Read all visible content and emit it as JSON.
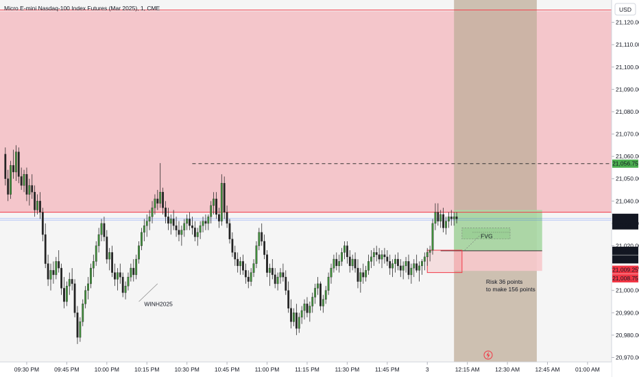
{
  "header": {
    "title": "Micro E-mini Nasdaq-100 Index Futures (Mar 2025), 1, CME",
    "currency_button": "USD"
  },
  "colors": {
    "up": "#26a69a",
    "up_body": "#3f8f3a",
    "down": "#222222",
    "supply_zone": "#f4c6cb",
    "loss_zone": "#f7c9cc",
    "target_zone": "#a9d8a5",
    "shade_column": "#bfae9a",
    "red_line": "#f23645",
    "blue_line": "#2962ff",
    "badge_green": "#4caf50",
    "badge_dark": "#131722",
    "badge_red": "#f23645"
  },
  "annotations": {
    "fvg_label": "FVG",
    "small_label": "WINH2025",
    "risk_text_line1": "Risk 36 points",
    "risk_text_line2": "to make 156 points",
    "target_line_label": ""
  },
  "price_badges": [
    {
      "value": "21,056.75",
      "price": 21056.75,
      "style": "green"
    },
    {
      "value": "21,032.50",
      "price": 21032.5,
      "style": "dark",
      "sub": "00:08"
    },
    {
      "value": "21,017.75",
      "price": 21017.75,
      "style": "dark"
    },
    {
      "value": "21,017.00",
      "price": 21017.0,
      "style": "dark"
    },
    {
      "value": "21,009.25",
      "price": 21009.25,
      "style": "red"
    },
    {
      "value": "21,008.75",
      "price": 21008.75,
      "style": "red"
    }
  ],
  "chart_data": {
    "type": "candlestick",
    "title": "Micro E-mini Nasdaq-100 Index Futures (Mar 2025), 1, CME",
    "xlabel": "",
    "ylabel": "",
    "ylim": [
      20968,
      21130
    ],
    "y_ticks": [
      20970,
      20980,
      20990,
      21000,
      21010,
      21020,
      21030,
      21040,
      21050,
      21060,
      21070,
      21080,
      21090,
      21100,
      21110,
      21120
    ],
    "y_tick_labels": [
      "20,970.00",
      "20,980.00",
      "20,990.00",
      "21,000.00",
      "21,010.00",
      "21,020.00",
      "21,030.00",
      "21,040.00",
      "21,050.00",
      "21,060.00",
      "21,070.00",
      "21,080.00",
      "21,090.00",
      "21,100.00",
      "21,110.00",
      "21,120.00"
    ],
    "x_ticks": [
      {
        "label": "09:30 PM",
        "index": 8
      },
      {
        "label": "09:45 PM",
        "index": 23
      },
      {
        "label": "10:00 PM",
        "index": 38
      },
      {
        "label": "10:15 PM",
        "index": 53
      },
      {
        "label": "10:30 PM",
        "index": 68
      },
      {
        "label": "10:45 PM",
        "index": 83
      },
      {
        "label": "11:00 PM",
        "index": 98
      },
      {
        "label": "11:15 PM",
        "index": 113
      },
      {
        "label": "11:30 PM",
        "index": 128
      },
      {
        "label": "11:45 PM",
        "index": 143
      },
      {
        "label": "3",
        "index": 158
      },
      {
        "label": "12:15 AM",
        "index": 173
      },
      {
        "label": "12:30 AM",
        "index": 188
      },
      {
        "label": "12:45 AM",
        "index": 203
      },
      {
        "label": "01:00 AM",
        "index": 218
      }
    ],
    "x_index_range": [
      -2,
      227
    ],
    "supply_zone": {
      "top": 21125,
      "bottom": 21035
    },
    "red_line_upper": 21125.5,
    "red_line_lower": 21035,
    "target_dashed_line": {
      "price": 21056.75,
      "from_index": 70
    },
    "blue_lines": [
      21032.2,
      21031.5
    ],
    "trade": {
      "entry": 21017.75,
      "stop": 21008.75,
      "target": 21036,
      "from_index": 168,
      "to_index": 201
    },
    "shade_column": {
      "from_index": 168,
      "to_index": 199
    },
    "fvg_box": {
      "from_index": 171,
      "to_index": 189,
      "top": 21028,
      "bottom": 21023
    },
    "order_block": {
      "from_index": 158,
      "to_index": 171,
      "top": 21018,
      "bottom": 21008
    },
    "candles": [
      [
        21061,
        21064,
        21047,
        21050
      ],
      [
        21050,
        21054,
        21040,
        21043
      ],
      [
        21043,
        21058,
        21041,
        21056
      ],
      [
        21056,
        21063,
        21050,
        21053
      ],
      [
        21053,
        21065,
        21049,
        21062
      ],
      [
        21062,
        21064,
        21048,
        21051
      ],
      [
        21051,
        21055,
        21045,
        21047
      ],
      [
        21047,
        21054,
        21044,
        21052
      ],
      [
        21052,
        21055,
        21040,
        21043
      ],
      [
        21043,
        21050,
        21038,
        21047
      ],
      [
        21047,
        21052,
        21041,
        21044
      ],
      [
        21044,
        21047,
        21033,
        21036
      ],
      [
        21036,
        21043,
        21034,
        21040
      ],
      [
        21040,
        21044,
        21032,
        21035
      ],
      [
        21035,
        21037,
        21022,
        21025
      ],
      [
        21025,
        21030,
        21010,
        21012
      ],
      [
        21012,
        21016,
        21002,
        21005
      ],
      [
        21005,
        21012,
        21000,
        21009
      ],
      [
        21009,
        21013,
        21003,
        21007
      ],
      [
        21007,
        21015,
        21005,
        21013
      ],
      [
        21013,
        21018,
        21008,
        21010
      ],
      [
        21010,
        21012,
        20998,
        21001
      ],
      [
        21001,
        21006,
        20992,
        20995
      ],
      [
        20995,
        21004,
        20993,
        21002
      ],
      [
        21002,
        21008,
        20998,
        21005
      ],
      [
        21005,
        21010,
        21000,
        21003
      ],
      [
        21003,
        21005,
        20988,
        20990
      ],
      [
        20990,
        20993,
        20976,
        20979
      ],
      [
        20979,
        20988,
        20977,
        20986
      ],
      [
        20986,
        20996,
        20984,
        20994
      ],
      [
        20994,
        21002,
        20992,
        21000
      ],
      [
        21000,
        21006,
        20996,
        21003
      ],
      [
        21003,
        21012,
        21001,
        21010
      ],
      [
        21010,
        21016,
        21006,
        21013
      ],
      [
        21013,
        21022,
        21011,
        21020
      ],
      [
        21020,
        21028,
        21017,
        21025
      ],
      [
        21025,
        21032,
        21022,
        21030
      ],
      [
        21030,
        21033,
        21022,
        21024
      ],
      [
        21024,
        21027,
        21012,
        21014
      ],
      [
        21014,
        21019,
        21009,
        21017
      ],
      [
        21017,
        21020,
        21006,
        21008
      ],
      [
        21008,
        21012,
        21002,
        21005
      ],
      [
        21005,
        21010,
        21000,
        21008
      ],
      [
        21008,
        21012,
        21003,
        21006
      ],
      [
        21006,
        21008,
        20997,
        20999
      ],
      [
        20999,
        21004,
        20996,
        21002
      ],
      [
        21002,
        21008,
        21000,
        21006
      ],
      [
        21006,
        21012,
        21004,
        21010
      ],
      [
        21010,
        21014,
        21004,
        21007
      ],
      [
        21007,
        21016,
        21005,
        21014
      ],
      [
        21014,
        21022,
        21012,
        21020
      ],
      [
        21020,
        21028,
        21018,
        21026
      ],
      [
        21026,
        21032,
        21022,
        21029
      ],
      [
        21029,
        21034,
        21024,
        21031
      ],
      [
        21031,
        21036,
        21027,
        21033
      ],
      [
        21033,
        21040,
        21030,
        21037
      ],
      [
        21037,
        21043,
        21034,
        21041
      ],
      [
        21041,
        21045,
        21036,
        21039
      ],
      [
        21039,
        21057,
        21037,
        21044
      ],
      [
        21044,
        21046,
        21034,
        21037
      ],
      [
        21037,
        21040,
        21030,
        21033
      ],
      [
        21033,
        21037,
        21027,
        21030
      ],
      [
        21030,
        21034,
        21025,
        21032
      ],
      [
        21032,
        21036,
        21027,
        21029
      ],
      [
        21029,
        21033,
        21024,
        21027
      ],
      [
        21027,
        21031,
        21022,
        21025
      ],
      [
        21025,
        21029,
        21020,
        21027
      ],
      [
        21027,
        21032,
        21024,
        21030
      ],
      [
        21030,
        21034,
        21027,
        21032
      ],
      [
        21032,
        21035,
        21027,
        21029
      ],
      [
        21029,
        21033,
        21025,
        21028
      ],
      [
        21028,
        21031,
        21022,
        21024
      ],
      [
        21024,
        21028,
        21020,
        21026
      ],
      [
        21026,
        21031,
        21023,
        21029
      ],
      [
        21029,
        21033,
        21026,
        21031
      ],
      [
        21031,
        21034,
        21027,
        21030
      ],
      [
        21030,
        21034,
        21027,
        21033
      ],
      [
        21033,
        21040,
        21030,
        21038
      ],
      [
        21038,
        21044,
        21034,
        21041
      ],
      [
        21041,
        21044,
        21032,
        21034
      ],
      [
        21034,
        21037,
        21028,
        21031
      ],
      [
        21031,
        21052,
        21029,
        21048
      ],
      [
        21048,
        21051,
        21032,
        21035
      ],
      [
        21035,
        21038,
        21028,
        21030
      ],
      [
        21030,
        21032,
        21021,
        21023
      ],
      [
        21023,
        21026,
        21015,
        21017
      ],
      [
        21017,
        21020,
        21011,
        21014
      ],
      [
        21014,
        21017,
        21008,
        21011
      ],
      [
        21011,
        21015,
        21007,
        21013
      ],
      [
        21013,
        21016,
        21007,
        21009
      ],
      [
        21009,
        21012,
        21003,
        21006
      ],
      [
        21006,
        21009,
        21001,
        21004
      ],
      [
        21004,
        21010,
        21002,
        21008
      ],
      [
        21008,
        21014,
        21006,
        21012
      ],
      [
        21012,
        21022,
        21010,
        21020
      ],
      [
        21020,
        21028,
        21018,
        21026
      ],
      [
        21026,
        21030,
        21020,
        21022
      ],
      [
        21022,
        21025,
        21014,
        21016
      ],
      [
        21016,
        21018,
        21006,
        21008
      ],
      [
        21008,
        21012,
        21002,
        21010
      ],
      [
        21010,
        21014,
        21005,
        21007
      ],
      [
        21007,
        21010,
        21001,
        21003
      ],
      [
        21003,
        21008,
        21000,
        21006
      ],
      [
        21006,
        21010,
        21003,
        21008
      ],
      [
        21008,
        21012,
        21004,
        21006
      ],
      [
        21006,
        21009,
        20998,
        21000
      ],
      [
        21000,
        21004,
        20990,
        20992
      ],
      [
        20992,
        20996,
        20983,
        20986
      ],
      [
        20986,
        20992,
        20984,
        20990
      ],
      [
        20990,
        20994,
        20980,
        20983
      ],
      [
        20983,
        20990,
        20981,
        20988
      ],
      [
        20988,
        20993,
        20985,
        20991
      ],
      [
        20991,
        20996,
        20987,
        20994
      ],
      [
        20994,
        20997,
        20988,
        20990
      ],
      [
        20990,
        20995,
        20986,
        20993
      ],
      [
        20993,
        20999,
        20990,
        20997
      ],
      [
        20997,
        21003,
        20994,
        21001
      ],
      [
        21001,
        21006,
        20998,
        21003
      ],
      [
        21003,
        21004,
        20991,
        20993
      ],
      [
        20993,
        20998,
        20990,
        20996
      ],
      [
        20996,
        21002,
        20994,
        21000
      ],
      [
        21000,
        21008,
        20998,
        21006
      ],
      [
        21006,
        21012,
        21003,
        21010
      ],
      [
        21010,
        21016,
        21008,
        21014
      ],
      [
        21014,
        21017,
        21009,
        21011
      ],
      [
        21011,
        21016,
        21008,
        21013
      ],
      [
        21013,
        21019,
        21011,
        21017
      ],
      [
        21017,
        21022,
        21014,
        21020
      ],
      [
        21020,
        21022,
        21012,
        21015
      ],
      [
        21015,
        21018,
        21008,
        21011
      ],
      [
        21011,
        21016,
        21009,
        21014
      ],
      [
        21014,
        21017,
        21008,
        21010
      ],
      [
        21010,
        21014,
        21001,
        21004
      ],
      [
        21004,
        21010,
        20999,
        21008
      ],
      [
        21008,
        21012,
        21003,
        21006
      ],
      [
        21006,
        21011,
        21004,
        21009
      ],
      [
        21009,
        21016,
        21007,
        21013
      ],
      [
        21013,
        21018,
        21010,
        21015
      ],
      [
        21015,
        21019,
        21011,
        21017
      ],
      [
        21017,
        21020,
        21013,
        21016
      ],
      [
        21016,
        21019,
        21012,
        21014
      ],
      [
        21014,
        21018,
        21010,
        21016
      ],
      [
        21016,
        21019,
        21012,
        21015
      ],
      [
        21015,
        21018,
        21011,
        21013
      ],
      [
        21013,
        21016,
        21007,
        21010
      ],
      [
        21010,
        21014,
        21006,
        21012
      ],
      [
        21012,
        21016,
        21008,
        21014
      ],
      [
        21014,
        21017,
        21009,
        21011
      ],
      [
        21011,
        21014,
        21006,
        21009
      ],
      [
        21009,
        21013,
        21005,
        21011
      ],
      [
        21011,
        21015,
        21008,
        21013
      ],
      [
        21013,
        21016,
        21005,
        21007
      ],
      [
        21007,
        21012,
        21003,
        21010
      ],
      [
        21010,
        21014,
        21006,
        21012
      ],
      [
        21012,
        21016,
        21008,
        21009
      ],
      [
        21009,
        21013,
        21004,
        21011
      ],
      [
        21011,
        21014,
        21007,
        21013
      ],
      [
        21013,
        21017,
        21009,
        21015
      ],
      [
        21015,
        21019,
        21011,
        21017
      ],
      [
        21017,
        21020,
        21013,
        21018
      ],
      [
        21018,
        21032,
        21016,
        21030
      ],
      [
        21030,
        21039,
        21027,
        21035
      ],
      [
        21035,
        21039,
        21029,
        21031
      ],
      [
        21031,
        21036,
        21028,
        21034
      ],
      [
        21034,
        21037,
        21026,
        21028
      ],
      [
        21028,
        21033,
        21025,
        21031
      ],
      [
        21031,
        21035,
        21028,
        21033
      ],
      [
        21033,
        21036,
        21029,
        21032
      ],
      [
        21032,
        21035,
        21029,
        21033
      ],
      [
        21033,
        21035,
        21030,
        21032
      ]
    ]
  }
}
